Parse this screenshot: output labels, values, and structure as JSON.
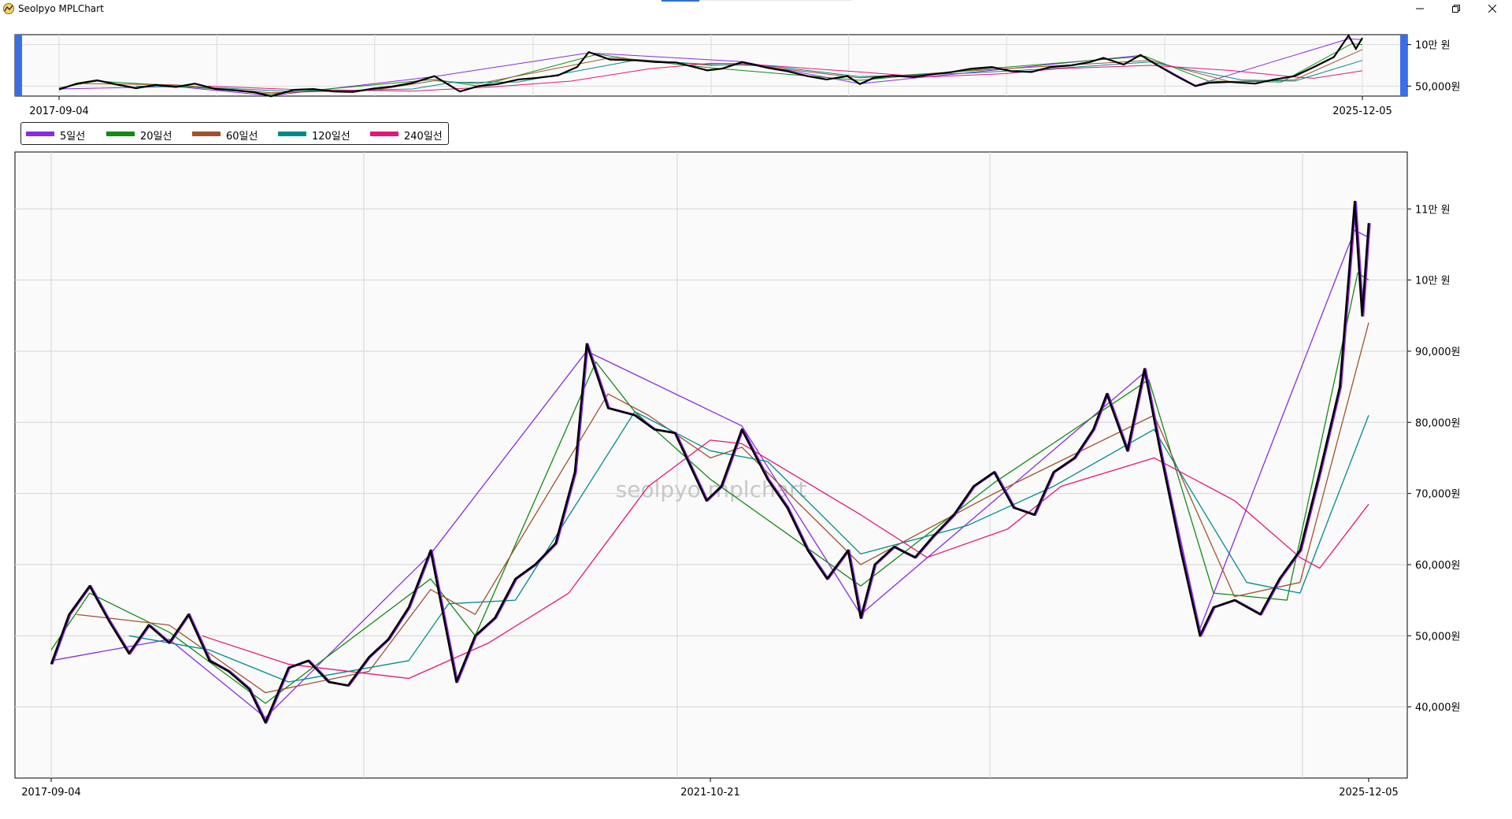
{
  "window": {
    "title": "Seolpyo MPLChart"
  },
  "watermark": "seolpyo mplchart",
  "colors": {
    "price": "#000000",
    "ma5": "#8a2be2",
    "ma20": "#138a13",
    "ma60": "#a0522d",
    "ma120": "#008b8b",
    "ma240": "#e6157a",
    "slider_handle": "#3a6de8",
    "background": "#fafafa"
  },
  "legend": [
    {
      "label": "5일선",
      "color": "#8a2be2"
    },
    {
      "label": "20일선",
      "color": "#138a13"
    },
    {
      "label": "60일선",
      "color": "#a0522d"
    },
    {
      "label": "120일선",
      "color": "#008b8b"
    },
    {
      "label": "240일선",
      "color": "#e6157a"
    }
  ],
  "slider": {
    "x_tick_labels": [
      "2017-09-04",
      "2025-12-05"
    ],
    "y_tick_labels": [
      "10만 원",
      "50,000원"
    ]
  },
  "main": {
    "x_tick_labels": [
      "2017-09-04",
      "2021-10-21",
      "2025-12-05"
    ],
    "y_tick_labels": [
      "11만 원",
      "10만 원",
      "90,000원",
      "80,000원",
      "70,000원",
      "60,000원",
      "50,000원",
      "40,000원"
    ]
  },
  "chart_data": {
    "type": "line",
    "title": "",
    "xlabel": "",
    "ylabel": "",
    "x_range": [
      "2017-09-04",
      "2025-12-05"
    ],
    "ylim": [
      30000,
      118000
    ],
    "grid": true,
    "legend_placement": "top-left",
    "price_points": [
      [
        "2017-09-04",
        46000
      ],
      [
        "2017-10-15",
        53000
      ],
      [
        "2017-12-01",
        57000
      ],
      [
        "2018-01-15",
        52000
      ],
      [
        "2018-03-01",
        47500
      ],
      [
        "2018-04-15",
        51500
      ],
      [
        "2018-06-01",
        49000
      ],
      [
        "2018-07-15",
        53000
      ],
      [
        "2018-09-01",
        46500
      ],
      [
        "2018-10-15",
        45000
      ],
      [
        "2018-12-01",
        42500
      ],
      [
        "2019-01-07",
        37800
      ],
      [
        "2019-03-01",
        45500
      ],
      [
        "2019-04-15",
        46500
      ],
      [
        "2019-06-01",
        43500
      ],
      [
        "2019-07-15",
        43000
      ],
      [
        "2019-09-01",
        47000
      ],
      [
        "2019-10-15",
        49500
      ],
      [
        "2019-12-01",
        54000
      ],
      [
        "2020-01-20",
        62000
      ],
      [
        "2020-03-19",
        43500
      ],
      [
        "2020-05-01",
        50000
      ],
      [
        "2020-06-15",
        52500
      ],
      [
        "2020-08-01",
        58000
      ],
      [
        "2020-09-15",
        60000
      ],
      [
        "2020-11-01",
        63000
      ],
      [
        "2020-12-15",
        73000
      ],
      [
        "2021-01-11",
        91000
      ],
      [
        "2021-03-01",
        82000
      ],
      [
        "2021-05-01",
        81000
      ],
      [
        "2021-06-15",
        79000
      ],
      [
        "2021-08-01",
        78500
      ],
      [
        "2021-10-12",
        69000
      ],
      [
        "2021-11-15",
        71000
      ],
      [
        "2022-01-01",
        79000
      ],
      [
        "2022-03-01",
        72000
      ],
      [
        "2022-04-15",
        68000
      ],
      [
        "2022-06-01",
        62000
      ],
      [
        "2022-07-15",
        58000
      ],
      [
        "2022-09-01",
        62000
      ],
      [
        "2022-09-30",
        52500
      ],
      [
        "2022-11-01",
        60000
      ],
      [
        "2022-12-15",
        62500
      ],
      [
        "2023-02-01",
        61000
      ],
      [
        "2023-03-15",
        64000
      ],
      [
        "2023-05-01",
        67000
      ],
      [
        "2023-06-15",
        71000
      ],
      [
        "2023-08-01",
        73000
      ],
      [
        "2023-09-15",
        68000
      ],
      [
        "2023-11-01",
        67000
      ],
      [
        "2023-12-15",
        73000
      ],
      [
        "2024-02-01",
        75000
      ],
      [
        "2024-03-15",
        79000
      ],
      [
        "2024-04-15",
        84000
      ],
      [
        "2024-06-01",
        76000
      ],
      [
        "2024-07-10",
        87500
      ],
      [
        "2024-08-15",
        76000
      ],
      [
        "2024-10-01",
        62000
      ],
      [
        "2024-11-14",
        50000
      ],
      [
        "2024-12-15",
        54000
      ],
      [
        "2025-02-01",
        55000
      ],
      [
        "2025-04-01",
        53000
      ],
      [
        "2025-05-15",
        58000
      ],
      [
        "2025-07-01",
        62000
      ],
      [
        "2025-08-15",
        73000
      ],
      [
        "2025-09-30",
        85000
      ],
      [
        "2025-11-03",
        111000
      ],
      [
        "2025-11-20",
        95000
      ],
      [
        "2025-12-05",
        108000
      ]
    ],
    "series": [
      {
        "name": "5일선",
        "color": "#8a2be2",
        "points": [
          [
            "2017-09-04",
            46500
          ],
          [
            "2018-06-01",
            49500
          ],
          [
            "2019-01-07",
            38500
          ],
          [
            "2020-01-20",
            61500
          ],
          [
            "2021-01-11",
            90000
          ],
          [
            "2022-01-01",
            79500
          ],
          [
            "2022-09-30",
            53000
          ],
          [
            "2024-07-10",
            87000
          ],
          [
            "2024-11-14",
            51000
          ],
          [
            "2025-11-03",
            107000
          ],
          [
            "2025-12-05",
            106000
          ]
        ]
      },
      {
        "name": "20일선",
        "color": "#138a13",
        "points": [
          [
            "2017-09-04",
            48000
          ],
          [
            "2017-12-01",
            56000
          ],
          [
            "2018-06-01",
            50500
          ],
          [
            "2019-01-07",
            40500
          ],
          [
            "2020-01-20",
            58000
          ],
          [
            "2020-05-01",
            50000
          ],
          [
            "2021-02-01",
            88500
          ],
          [
            "2021-05-01",
            81500
          ],
          [
            "2021-10-21",
            72000
          ],
          [
            "2022-09-30",
            57000
          ],
          [
            "2023-08-01",
            71500
          ],
          [
            "2024-07-20",
            86000
          ],
          [
            "2024-12-15",
            56000
          ],
          [
            "2025-06-01",
            55000
          ],
          [
            "2025-11-10",
            101000
          ],
          [
            "2025-12-05",
            100000
          ]
        ]
      },
      {
        "name": "60일선",
        "color": "#a0522d",
        "points": [
          [
            "2017-11-01",
            53000
          ],
          [
            "2018-06-01",
            51500
          ],
          [
            "2019-01-07",
            42000
          ],
          [
            "2019-09-01",
            45000
          ],
          [
            "2020-01-20",
            56500
          ],
          [
            "2020-05-01",
            53000
          ],
          [
            "2021-03-01",
            84000
          ],
          [
            "2021-06-01",
            81000
          ],
          [
            "2021-10-21",
            75000
          ],
          [
            "2022-01-01",
            76500
          ],
          [
            "2022-09-30",
            60000
          ],
          [
            "2023-08-01",
            70000
          ],
          [
            "2024-08-01",
            81000
          ],
          [
            "2025-02-01",
            55500
          ],
          [
            "2025-07-01",
            57500
          ],
          [
            "2025-12-05",
            94000
          ]
        ]
      },
      {
        "name": "120일선",
        "color": "#008b8b",
        "points": [
          [
            "2018-03-01",
            50000
          ],
          [
            "2018-09-01",
            48000
          ],
          [
            "2019-03-01",
            43500
          ],
          [
            "2019-12-01",
            46500
          ],
          [
            "2020-03-01",
            54500
          ],
          [
            "2020-08-01",
            55000
          ],
          [
            "2021-05-01",
            81500
          ],
          [
            "2021-10-21",
            76000
          ],
          [
            "2022-03-01",
            74500
          ],
          [
            "2022-09-30",
            61500
          ],
          [
            "2023-06-01",
            65500
          ],
          [
            "2023-12-15",
            71000
          ],
          [
            "2024-08-01",
            79000
          ],
          [
            "2025-03-01",
            57500
          ],
          [
            "2025-07-01",
            56000
          ],
          [
            "2025-12-05",
            81000
          ]
        ]
      },
      {
        "name": "240일선",
        "color": "#e6157a",
        "points": [
          [
            "2018-08-15",
            50000
          ],
          [
            "2019-03-01",
            46000
          ],
          [
            "2019-12-01",
            44000
          ],
          [
            "2020-06-01",
            49000
          ],
          [
            "2020-12-01",
            56000
          ],
          [
            "2021-06-01",
            71000
          ],
          [
            "2021-10-21",
            77500
          ],
          [
            "2022-01-01",
            77000
          ],
          [
            "2022-09-30",
            67000
          ],
          [
            "2023-03-01",
            61000
          ],
          [
            "2023-09-01",
            65000
          ],
          [
            "2024-01-01",
            71000
          ],
          [
            "2024-08-01",
            75000
          ],
          [
            "2025-02-01",
            69000
          ],
          [
            "2025-07-01",
            61000
          ],
          [
            "2025-08-15",
            59500
          ],
          [
            "2025-12-05",
            68500
          ]
        ]
      }
    ]
  }
}
